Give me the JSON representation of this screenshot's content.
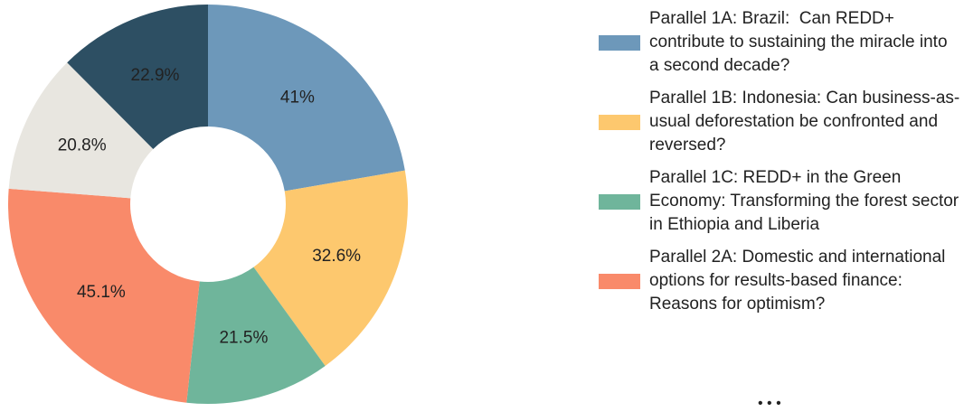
{
  "chart_data": {
    "type": "pie",
    "categories": [
      "Parallel 1A: Brazil:  Can REDD+ contribute to sustaining the miracle into a second decade?",
      "Parallel 1B: Indonesia: Can business-as-usual deforestation be confronted and reversed?",
      "Parallel 1C: REDD+ in the Green Economy: Transforming the forest sector in Ethiopia and Liberia",
      "Parallel 2A: Domestic and international options for results-based finance: Reasons for optimism?",
      null,
      null
    ],
    "values": [
      41,
      32.6,
      21.5,
      45.1,
      20.8,
      22.9
    ],
    "value_labels": [
      "41%",
      "32.6%",
      "21.5%",
      "45.1%",
      "20.8%",
      "22.9%"
    ],
    "colors": [
      "#6d98ba",
      "#fdc86e",
      "#6fb59b",
      "#f98a6a",
      "#e8e6e0",
      "#2d4f63"
    ],
    "donut": true,
    "legend": "right",
    "legend_more": "• • •"
  }
}
